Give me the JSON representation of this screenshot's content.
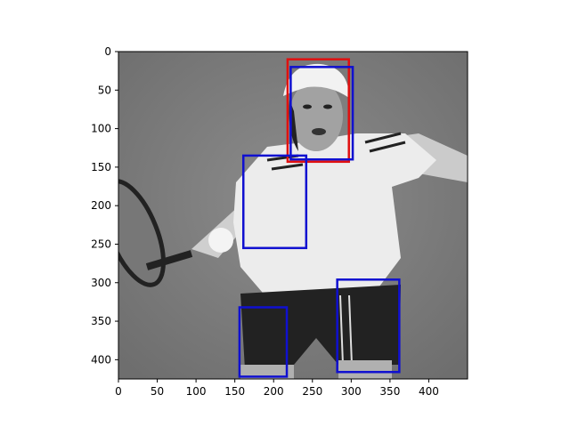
{
  "image": {
    "description_icon": "grayscale-tennis-player-photo",
    "width": 450,
    "height": 425
  },
  "axes": {
    "x_ticks": [
      0,
      50,
      100,
      150,
      200,
      250,
      300,
      350,
      400
    ],
    "y_ticks": [
      0,
      50,
      100,
      150,
      200,
      250,
      300,
      350,
      400
    ],
    "xlim": [
      0,
      450
    ],
    "ylim": [
      425,
      0
    ]
  },
  "boxes": [
    {
      "color": "#e01010",
      "x0": 218,
      "y0": 10,
      "x1": 297,
      "y1": 143
    },
    {
      "color": "#1010d0",
      "x0": 222,
      "y0": 20,
      "x1": 302,
      "y1": 140
    },
    {
      "color": "#1010d0",
      "x0": 161,
      "y0": 135,
      "x1": 242,
      "y1": 255
    },
    {
      "color": "#1010d0",
      "x0": 282,
      "y0": 296,
      "x1": 362,
      "y1": 416
    },
    {
      "color": "#1010d0",
      "x0": 156,
      "y0": 332,
      "x1": 217,
      "y1": 422
    }
  ]
}
